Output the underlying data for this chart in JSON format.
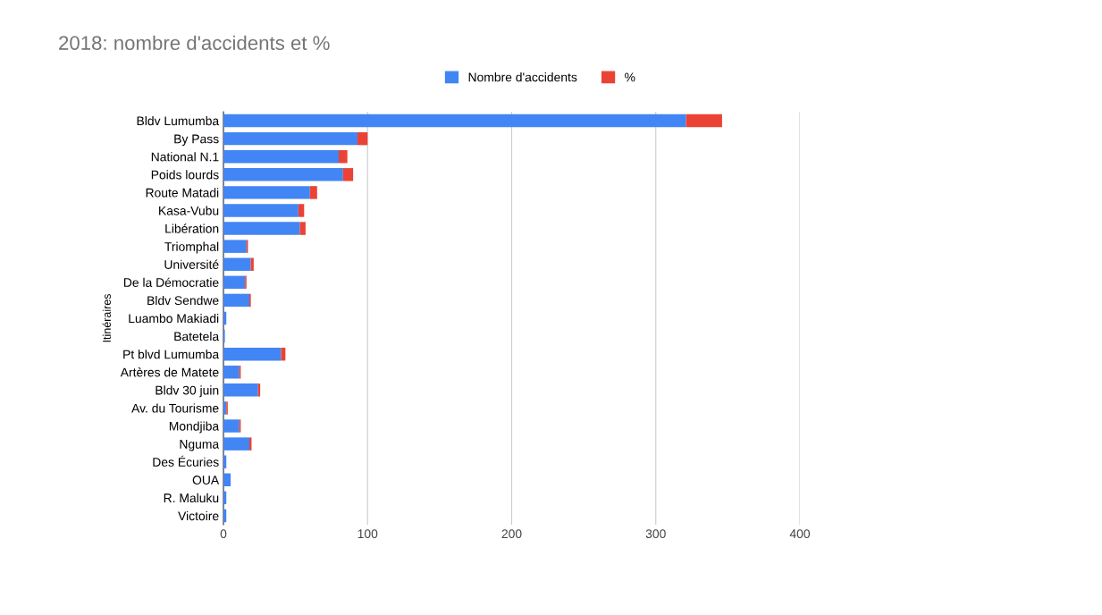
{
  "chart_data": {
    "type": "bar",
    "orientation": "horizontal",
    "stacked": true,
    "title": "2018: nombre d'accidents et %",
    "ylabel": "Itinéraires",
    "categories": [
      "Bldv Lumumba",
      "By Pass",
      "National N.1",
      "Poids lourds",
      "Route Matadi",
      "Kasa-Vubu",
      "Libération",
      "Triomphal",
      "Université",
      "De la Démocratie",
      "Bldv Sendwe",
      "Luambo Makiadi",
      "Batetela",
      "Pt blvd Lumumba",
      "Artères de Matete",
      "Bldv 30 juin",
      "Av. du Tourisme",
      "Mondjiba",
      "Nguma",
      "Des Écuries",
      "OUA",
      "R. Maluku",
      "Victoire"
    ],
    "series": [
      {
        "name": "Nombre d'accidents",
        "color": "#4285f4",
        "values": [
          321,
          93,
          80,
          83,
          60,
          52,
          53,
          16,
          19,
          15,
          18,
          2,
          1,
          40,
          11,
          24,
          2,
          11,
          18,
          2,
          5,
          2,
          2
        ]
      },
      {
        "name": "%",
        "color": "#ea4335",
        "values": [
          25,
          7,
          6,
          7,
          5,
          4,
          4,
          1,
          2,
          1,
          1,
          0,
          0,
          3,
          1,
          1.5,
          1,
          1,
          1.5,
          0,
          0,
          0,
          0
        ]
      }
    ],
    "xlim": [
      0,
      400
    ],
    "xticks": [
      0,
      100,
      200,
      300,
      400
    ],
    "grid": "x",
    "legend": "top"
  }
}
